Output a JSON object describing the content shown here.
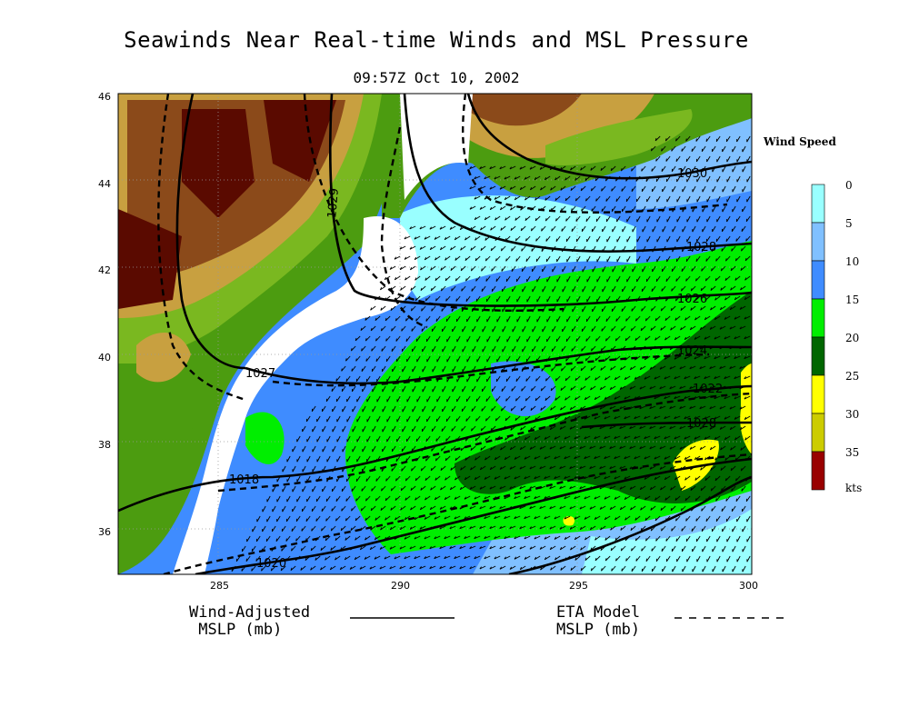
{
  "title": "Seawinds Near Real-time Winds and MSL Pressure",
  "subtitle": "09:57Z Oct 10, 2002",
  "axes": {
    "x_ticks": [
      "285",
      "290",
      "295",
      "300"
    ],
    "y_ticks": [
      "46",
      "44",
      "42",
      "40",
      "38",
      "36"
    ],
    "x_range": [
      282,
      300
    ],
    "y_range": [
      35,
      46
    ]
  },
  "wind_legend": {
    "title": "Wind Speed",
    "unit": "kts",
    "levels": [
      {
        "label": "0",
        "color": "#99ffff"
      },
      {
        "label": "5",
        "color": "#80c0ff"
      },
      {
        "label": "10",
        "color": "#3f8cff"
      },
      {
        "label": "15",
        "color": "#00ee00"
      },
      {
        "label": "20",
        "color": "#006600"
      },
      {
        "label": "25",
        "color": "#ffff00"
      },
      {
        "label": "30",
        "color": "#cccc00"
      },
      {
        "label": "35",
        "color": "#990000"
      }
    ]
  },
  "isobar_labels": [
    "1030",
    "1028",
    "1026",
    "1024",
    "1022",
    "1020",
    "1018",
    "1028",
    "1027",
    "1029"
  ],
  "bottom_legend": {
    "wind_adjusted": "Wind-Adjusted\n MSLP (mb)",
    "eta_model": "ETA Model\nMSLP (mb)"
  },
  "colors": {
    "terrain_high": "#5a0a00",
    "terrain_mid": "#8b4a1a",
    "terrain_low": "#c8a040",
    "lowland": "#4c9c10",
    "land_green": "#7ab820",
    "coast_white": "#ffffff"
  }
}
